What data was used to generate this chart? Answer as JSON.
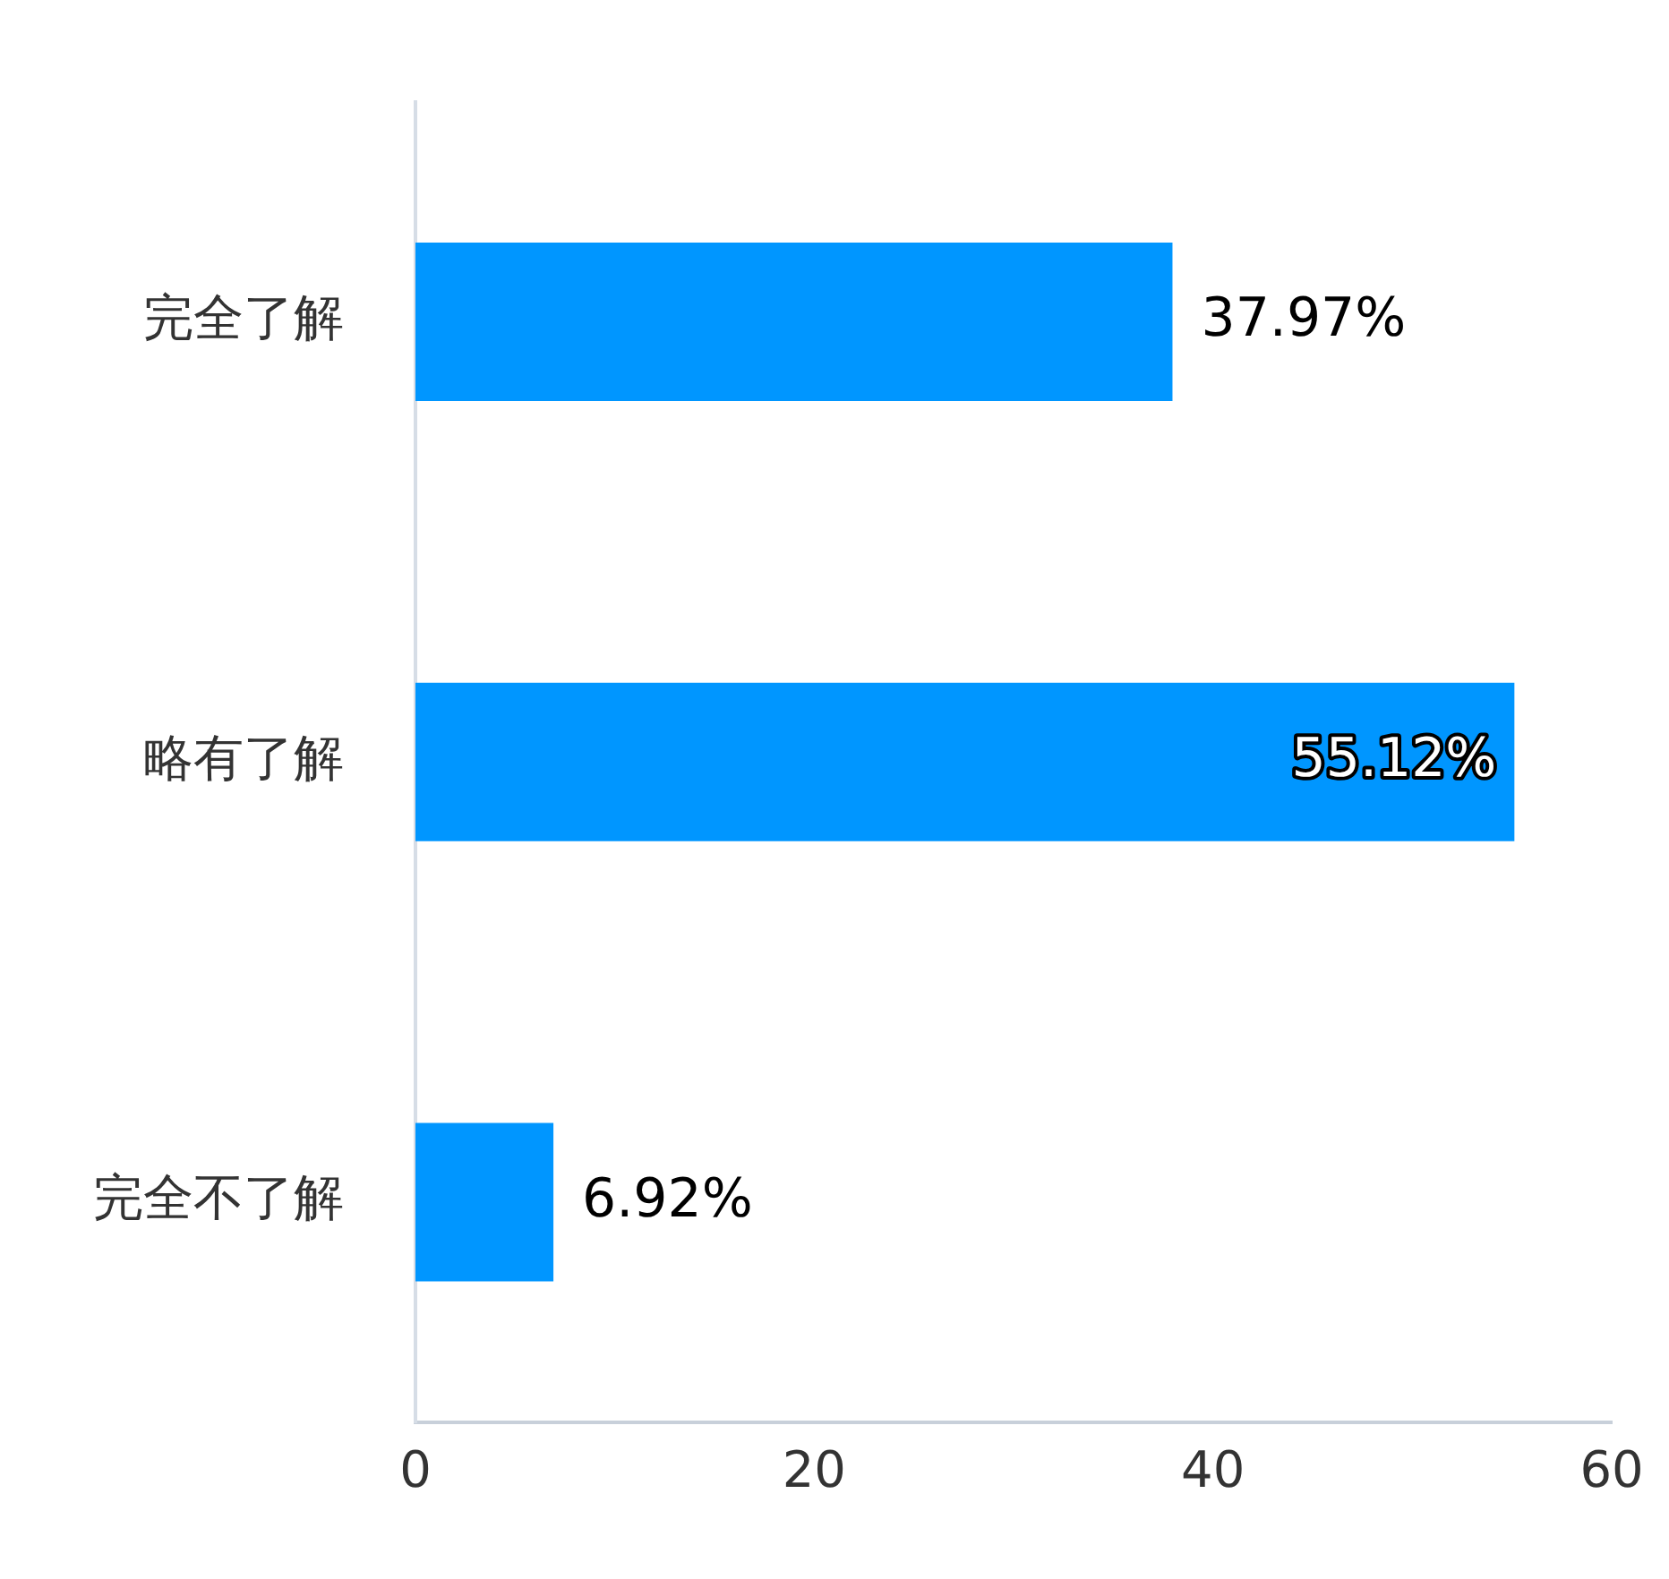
{
  "chart_data": {
    "type": "bar",
    "orientation": "horizontal",
    "categories": [
      "完全了解",
      "略有了解",
      "完全不了解"
    ],
    "values": [
      37.97,
      55.12,
      6.92
    ],
    "color": "#0096ff",
    "value_labels": [
      "37.97%",
      "55.12%",
      "6.92%"
    ],
    "xlim": [
      0,
      60
    ],
    "xticks": [
      0,
      20,
      40,
      60
    ],
    "grid": false,
    "legend": false
  }
}
